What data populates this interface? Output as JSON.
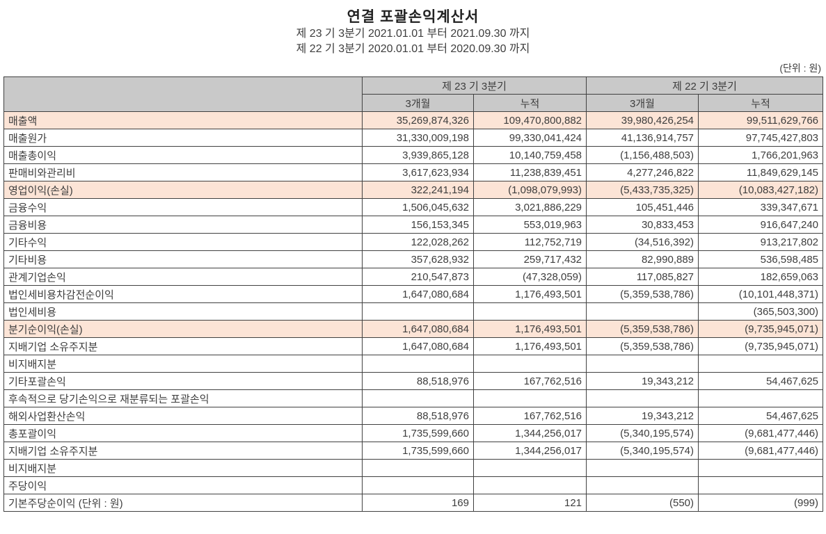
{
  "title": "연결 포괄손익계산서",
  "period_lines": [
    "제 23 기 3분기 2021.01.01 부터 2021.09.30 까지",
    "제 22 기 3분기 2020.01.01 부터 2020.09.30 까지"
  ],
  "unit_label": "(단위 : 원)",
  "colors": {
    "header_bg": "#c9c9c9",
    "highlight_bg": "#fce4d6",
    "border": "#404040",
    "text": "#3d3d3d"
  },
  "table": {
    "column_groups": [
      {
        "label": "제 23 기 3분기"
      },
      {
        "label": "제 22 기 3분기"
      }
    ],
    "sub_headers": [
      "3개월",
      "누적",
      "3개월",
      "누적"
    ],
    "rows": [
      {
        "label": "매출액",
        "indent": 0,
        "highlight": true,
        "values": [
          "35,269,874,326",
          "109,470,800,882",
          "39,980,426,254",
          "99,511,629,766"
        ]
      },
      {
        "label": "매출원가",
        "indent": 0,
        "highlight": false,
        "values": [
          "31,330,009,198",
          "99,330,041,424",
          "41,136,914,757",
          "97,745,427,803"
        ]
      },
      {
        "label": "매출총이익",
        "indent": 0,
        "highlight": false,
        "values": [
          "3,939,865,128",
          "10,140,759,458",
          "(1,156,488,503)",
          "1,766,201,963"
        ]
      },
      {
        "label": "판매비와관리비",
        "indent": 0,
        "highlight": false,
        "values": [
          "3,617,623,934",
          "11,238,839,451",
          "4,277,246,822",
          "11,849,629,145"
        ]
      },
      {
        "label": "영업이익(손실)",
        "indent": 0,
        "highlight": true,
        "values": [
          "322,241,194",
          "(1,098,079,993)",
          "(5,433,735,325)",
          "(10,083,427,182)"
        ]
      },
      {
        "label": "금융수익",
        "indent": 0,
        "highlight": false,
        "values": [
          "1,506,045,632",
          "3,021,886,229",
          "105,451,446",
          "339,347,671"
        ]
      },
      {
        "label": "금융비용",
        "indent": 0,
        "highlight": false,
        "values": [
          "156,153,345",
          "553,019,963",
          "30,833,453",
          "916,647,240"
        ]
      },
      {
        "label": "기타수익",
        "indent": 0,
        "highlight": false,
        "values": [
          "122,028,262",
          "112,752,719",
          "(34,516,392)",
          "913,217,802"
        ]
      },
      {
        "label": "기타비용",
        "indent": 0,
        "highlight": false,
        "values": [
          "357,628,932",
          "259,717,432",
          "82,990,889",
          "536,598,485"
        ]
      },
      {
        "label": "관계기업손익",
        "indent": 0,
        "highlight": false,
        "values": [
          "210,547,873",
          "(47,328,059)",
          "117,085,827",
          "182,659,063"
        ]
      },
      {
        "label": "법인세비용차감전순이익",
        "indent": 0,
        "highlight": false,
        "values": [
          "1,647,080,684",
          "1,176,493,501",
          "(5,359,538,786)",
          "(10,101,448,371)"
        ]
      },
      {
        "label": "법인세비용",
        "indent": 0,
        "highlight": false,
        "values": [
          "",
          "",
          "",
          "(365,503,300)"
        ]
      },
      {
        "label": "분기순이익(손실)",
        "indent": 0,
        "highlight": true,
        "values": [
          "1,647,080,684",
          "1,176,493,501",
          "(5,359,538,786)",
          "(9,735,945,071)"
        ]
      },
      {
        "label": "지배기업 소유주지분",
        "indent": 1,
        "highlight": false,
        "values": [
          "1,647,080,684",
          "1,176,493,501",
          "(5,359,538,786)",
          "(9,735,945,071)"
        ]
      },
      {
        "label": "비지배지분",
        "indent": 1,
        "highlight": false,
        "values": [
          "",
          "",
          "",
          ""
        ]
      },
      {
        "label": "기타포괄손익",
        "indent": 0,
        "highlight": false,
        "values": [
          "88,518,976",
          "167,762,516",
          "19,343,212",
          "54,467,625"
        ]
      },
      {
        "label": "후속적으로 당기손익으로 재분류되는 포괄손익",
        "indent": 1,
        "highlight": false,
        "values": [
          "",
          "",
          "",
          ""
        ]
      },
      {
        "label": "해외사업환산손익",
        "indent": 2,
        "highlight": false,
        "values": [
          "88,518,976",
          "167,762,516",
          "19,343,212",
          "54,467,625"
        ]
      },
      {
        "label": "총포괄이익",
        "indent": 0,
        "highlight": false,
        "values": [
          "1,735,599,660",
          "1,344,256,017",
          "(5,340,195,574)",
          "(9,681,477,446)"
        ]
      },
      {
        "label": "지배기업 소유주지분",
        "indent": 1,
        "highlight": false,
        "values": [
          "1,735,599,660",
          "1,344,256,017",
          "(5,340,195,574)",
          "(9,681,477,446)"
        ]
      },
      {
        "label": "비지배지분",
        "indent": 1,
        "highlight": false,
        "values": [
          "",
          "",
          "",
          ""
        ]
      },
      {
        "label": "주당이익",
        "indent": 0,
        "highlight": false,
        "values": [
          "",
          "",
          "",
          ""
        ]
      },
      {
        "label": "기본주당순이익 (단위 : 원)",
        "indent": 1,
        "highlight": false,
        "values": [
          "169",
          "121",
          "(550)",
          "(999)"
        ]
      }
    ]
  }
}
